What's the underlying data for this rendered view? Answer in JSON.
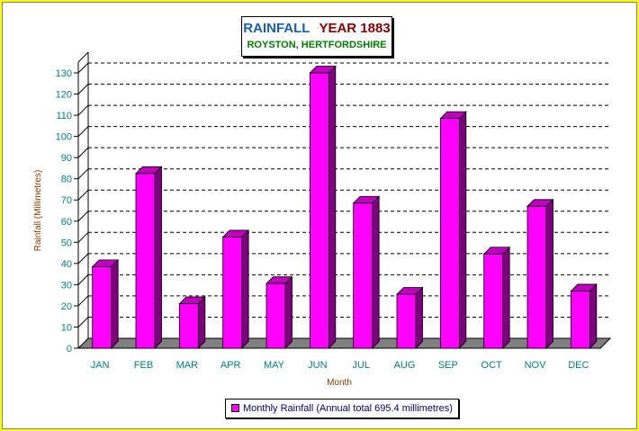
{
  "chart_data": {
    "type": "bar",
    "title": "RAINFALL",
    "title_year": "YEAR 1883",
    "subtitle": "ROYSTON, HERTFORDSHIRE",
    "xlabel": "Month",
    "ylabel": "Rainfall (Millimetres)",
    "categories": [
      "JAN",
      "FEB",
      "MAR",
      "APR",
      "MAY",
      "JUN",
      "JUL",
      "AUG",
      "SEP",
      "OCT",
      "NOV",
      "DEC"
    ],
    "yticks": [
      0,
      10,
      20,
      30,
      40,
      50,
      60,
      70,
      80,
      90,
      100,
      110,
      120,
      130
    ],
    "ylim": [
      0,
      130
    ],
    "series": [
      {
        "name": "Monthly Rainfall (Annual total 695.4 millimetres)",
        "values": [
          38.5,
          82.5,
          21,
          52.5,
          30.5,
          130,
          68.5,
          25.5,
          108.5,
          44.5,
          67,
          27
        ],
        "color": "#ff00ff"
      }
    ],
    "grid": true,
    "legend_position": "bottom-center",
    "colors": {
      "bar_front": "#ff00ff",
      "bar_side": "#7f007f",
      "bar_top": "#c000c0",
      "floor": "#808080",
      "grid": "#000000",
      "tick_label": "#008080",
      "axis_title": "#8b3a00",
      "background": "#ffff00"
    }
  }
}
